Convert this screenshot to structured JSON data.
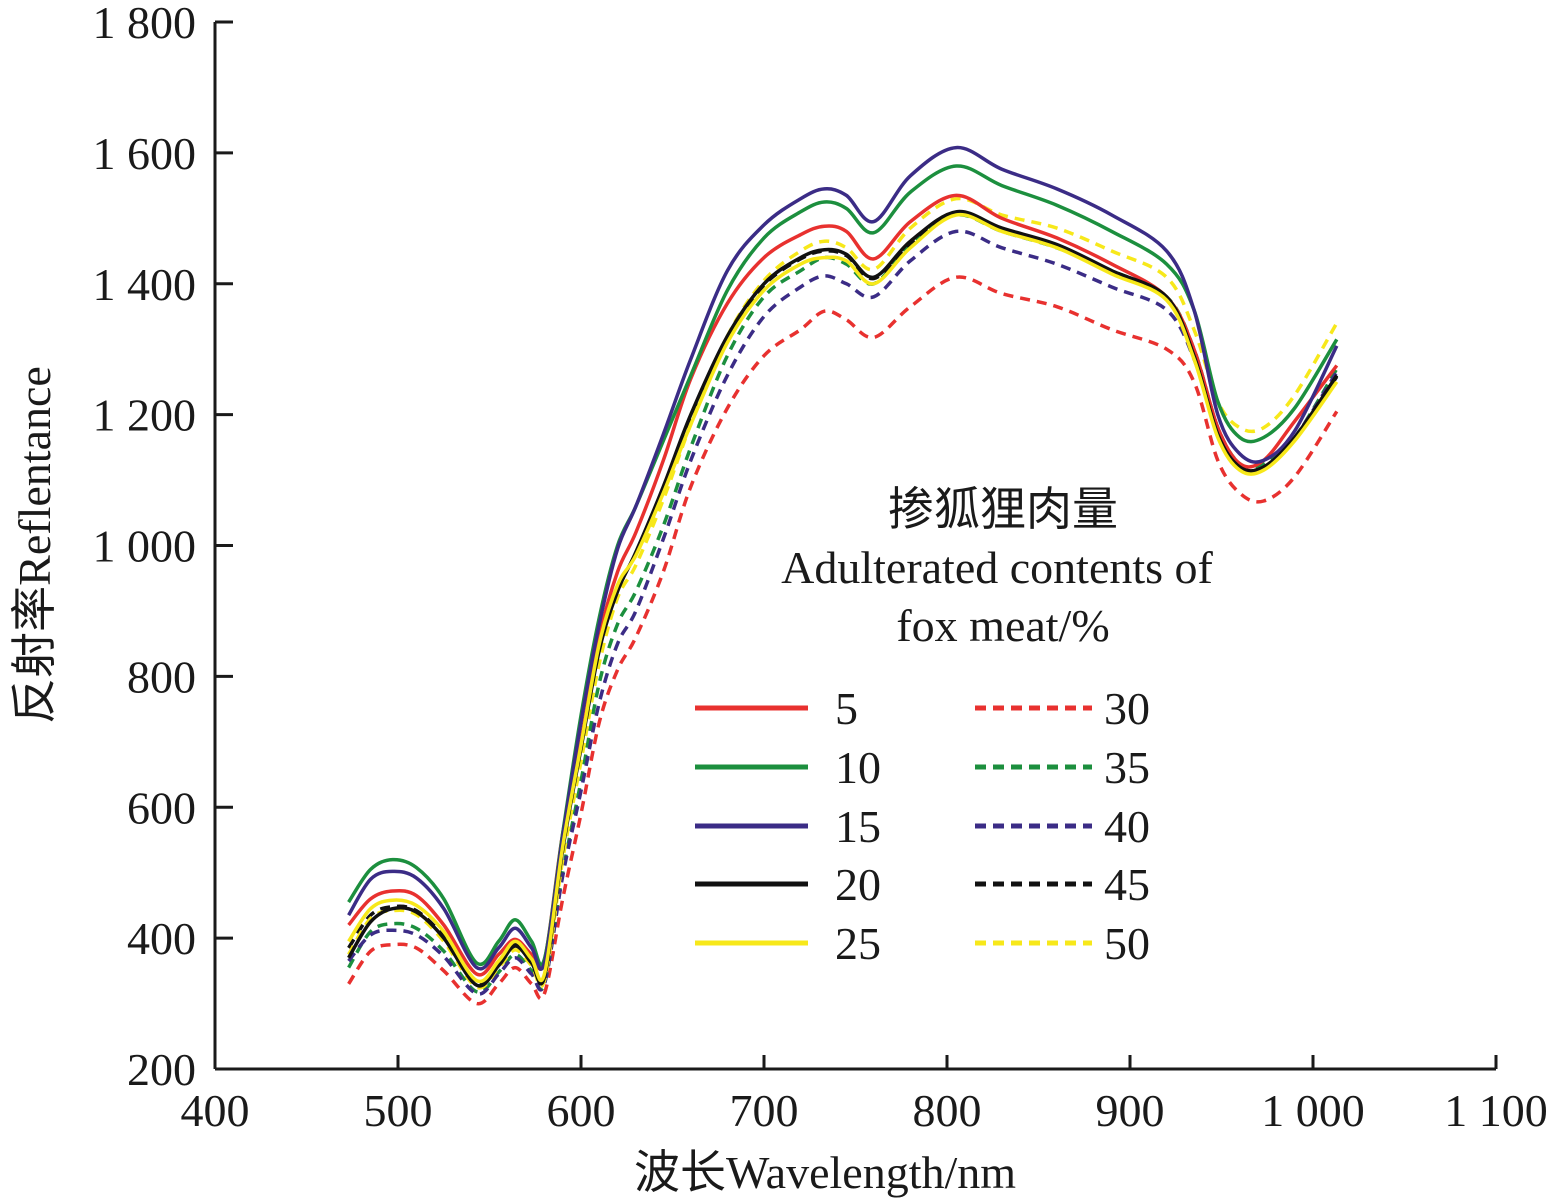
{
  "chart_data": {
    "type": "line",
    "xlabel": "波长Wavelength/nm",
    "ylabel": "反射率Reflentance",
    "xlim": [
      400,
      1100
    ],
    "ylim": [
      200,
      1800
    ],
    "xticks": [
      400,
      500,
      600,
      700,
      800,
      900,
      1000,
      1100
    ],
    "xtick_labels": [
      "400",
      "500",
      "600",
      "700",
      "800",
      "900",
      "1 000",
      "1 100"
    ],
    "yticks": [
      200,
      400,
      600,
      800,
      1000,
      1200,
      1400,
      1600,
      1800
    ],
    "ytick_labels": [
      "200",
      "400",
      "600",
      "800",
      "1 000",
      "1 200",
      "1 400",
      "1 600",
      "1 800"
    ],
    "grid": false,
    "legend": {
      "title_lines": [
        "掺狐狸肉量",
        "Adulterated contents of",
        "fox meat/%"
      ],
      "placement": "center-right",
      "columns": 2
    },
    "x": [
      473,
      485,
      497,
      510,
      525,
      543,
      555,
      564,
      573,
      580,
      590,
      600,
      610,
      620,
      630,
      645,
      660,
      680,
      700,
      720,
      733,
      745,
      760,
      780,
      805,
      830,
      860,
      890,
      920,
      935,
      948,
      960,
      973,
      990,
      1013
    ],
    "series": [
      {
        "name": "5",
        "style": "solid",
        "color": "#e8312f",
        "values": [
          420,
          460,
          472,
          465,
          420,
          345,
          375,
          398,
          375,
          365,
          560,
          700,
          860,
          960,
          1020,
          1130,
          1255,
          1370,
          1440,
          1475,
          1488,
          1480,
          1438,
          1495,
          1535,
          1500,
          1470,
          1430,
          1380,
          1300,
          1180,
          1125,
          1130,
          1190,
          1275
        ]
      },
      {
        "name": "10",
        "style": "solid",
        "color": "#1c8f3e",
        "values": [
          455,
          505,
          520,
          508,
          460,
          362,
          395,
          428,
          395,
          368,
          560,
          740,
          890,
          1000,
          1060,
          1160,
          1260,
          1390,
          1470,
          1510,
          1525,
          1515,
          1478,
          1540,
          1580,
          1550,
          1520,
          1480,
          1430,
          1360,
          1220,
          1165,
          1165,
          1210,
          1315
        ]
      },
      {
        "name": "15",
        "style": "solid",
        "color": "#3b2c86",
        "values": [
          435,
          490,
          502,
          492,
          445,
          355,
          385,
          415,
          385,
          362,
          555,
          730,
          880,
          995,
          1060,
          1170,
          1285,
          1420,
          1490,
          1530,
          1545,
          1535,
          1495,
          1565,
          1608,
          1575,
          1545,
          1505,
          1450,
          1360,
          1200,
          1140,
          1130,
          1175,
          1305
        ]
      },
      {
        "name": "20",
        "style": "solid",
        "color": "#111111",
        "values": [
          370,
          425,
          445,
          440,
          400,
          328,
          358,
          388,
          362,
          340,
          535,
          690,
          840,
          930,
          990,
          1090,
          1200,
          1320,
          1400,
          1440,
          1452,
          1445,
          1410,
          1465,
          1510,
          1485,
          1460,
          1420,
          1380,
          1290,
          1170,
          1120,
          1120,
          1165,
          1260
        ]
      },
      {
        "name": "25",
        "style": "solid",
        "color": "#f7e81a",
        "values": [
          395,
          445,
          458,
          450,
          410,
          335,
          365,
          395,
          368,
          345,
          540,
          695,
          850,
          940,
          985,
          1080,
          1185,
          1310,
          1390,
          1430,
          1440,
          1435,
          1400,
          1455,
          1505,
          1480,
          1455,
          1415,
          1375,
          1285,
          1165,
          1115,
          1115,
          1160,
          1250
        ]
      },
      {
        "name": "30",
        "style": "dashed",
        "color": "#e8312f",
        "values": [
          330,
          380,
          390,
          385,
          350,
          300,
          330,
          355,
          330,
          315,
          460,
          590,
          730,
          810,
          860,
          960,
          1090,
          1210,
          1290,
          1330,
          1358,
          1345,
          1318,
          1365,
          1410,
          1385,
          1365,
          1330,
          1300,
          1250,
          1130,
          1080,
          1068,
          1105,
          1205
        ]
      },
      {
        "name": "35",
        "style": "dashed",
        "color": "#1c8f3e",
        "values": [
          355,
          410,
          422,
          415,
          380,
          318,
          348,
          375,
          350,
          330,
          500,
          640,
          790,
          880,
          930,
          1030,
          1150,
          1290,
          1380,
          1420,
          1440,
          1430,
          1400,
          1460,
          1505,
          1480,
          1455,
          1420,
          1380,
          1300,
          1180,
          1125,
          1125,
          1165,
          1270
        ]
      },
      {
        "name": "40",
        "style": "dashed",
        "color": "#3b2c86",
        "values": [
          365,
          405,
          412,
          405,
          372,
          315,
          345,
          370,
          345,
          330,
          495,
          625,
          760,
          850,
          900,
          1010,
          1130,
          1260,
          1350,
          1395,
          1412,
          1400,
          1380,
          1435,
          1480,
          1455,
          1430,
          1395,
          1360,
          1285,
          1170,
          1120,
          1120,
          1165,
          1265
        ]
      },
      {
        "name": "45",
        "style": "dashed",
        "color": "#111111",
        "values": [
          385,
          435,
          448,
          442,
          402,
          330,
          360,
          390,
          364,
          342,
          538,
          692,
          845,
          935,
          988,
          1088,
          1198,
          1318,
          1398,
          1438,
          1450,
          1443,
          1408,
          1462,
          1508,
          1483,
          1458,
          1418,
          1378,
          1288,
          1168,
          1118,
          1118,
          1163,
          1258
        ]
      },
      {
        "name": "50",
        "style": "dashed",
        "color": "#f7e81a",
        "values": [
          375,
          430,
          442,
          436,
          395,
          325,
          355,
          382,
          358,
          335,
          520,
          670,
          820,
          920,
          970,
          1070,
          1185,
          1320,
          1405,
          1450,
          1465,
          1455,
          1422,
          1485,
          1530,
          1505,
          1485,
          1450,
          1410,
          1330,
          1220,
          1180,
          1180,
          1230,
          1340
        ]
      }
    ]
  }
}
